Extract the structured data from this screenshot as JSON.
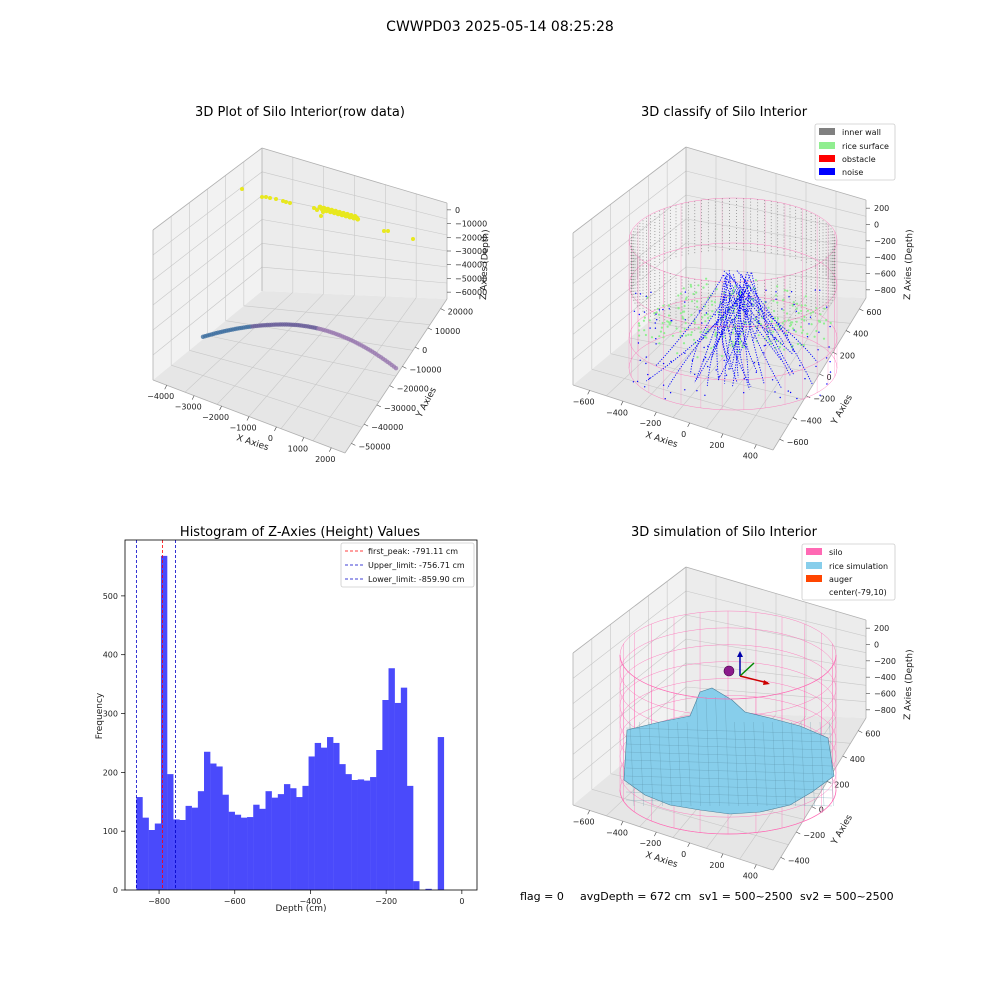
{
  "suptitle": "CWWPD03 2025-05-14 08:25:28",
  "footer": {
    "flag": "flag = 0",
    "avg": "avgDepth = 672 cm",
    "sv1": "sv1 = 500~2500",
    "sv2": "sv2 = 500~2500"
  },
  "colors": {
    "hist_bar": "#4a4afb",
    "peak_line": "#ff0000",
    "limit_line": "#0000c8",
    "inner_wall": "#808080",
    "rice_surface": "#90ee90",
    "obstacle": "#ff0000",
    "noise": "#0000ff",
    "silo": "#ff69b4",
    "rice_sim": "#87ceeb",
    "auger": "#ff4500",
    "raw_points": "#e8e81e"
  },
  "chart_data": [
    {
      "type": "scatter3d",
      "title": "3D Plot of Silo Interior(row data)",
      "xlabel": "X Axies",
      "ylabel": "Y Axies",
      "zlabel": "Z Axies (Depth)",
      "xticks": [
        "−4000",
        "−3000",
        "−2000",
        "−1000",
        "0",
        "1000",
        "2000"
      ],
      "yticks": [
        "−50000",
        "−40000",
        "−30000",
        "−20000",
        "−10000",
        "0",
        "10000",
        "20000"
      ],
      "zticks": [
        "0",
        "−10000",
        "−20000",
        "−30000",
        "−40000",
        "−50000",
        "−60000"
      ]
    },
    {
      "type": "scatter3d",
      "title": "3D classify of Silo Interior",
      "xlabel": "X Axies",
      "ylabel": "Y Axies",
      "zlabel": "Z Axies (Depth)",
      "xticks": [
        "−600",
        "−400",
        "−200",
        "0",
        "200",
        "400"
      ],
      "yticks": [
        "−600",
        "−400",
        "−200",
        "0",
        "200",
        "400",
        "600"
      ],
      "zticks": [
        "200",
        "0",
        "−200",
        "−400",
        "−600",
        "−800"
      ],
      "legend": [
        "inner wall",
        "rice surface",
        "obstacle",
        "noise"
      ],
      "legend_loc": "upper right"
    },
    {
      "type": "bar",
      "title": "Histogram of Z-Axies (Height) Values",
      "xlabel": "Depth (cm)",
      "ylabel": "Frequency",
      "xlim": [
        -890,
        40
      ],
      "ylim": [
        0,
        595
      ],
      "xticks": [
        -800,
        -600,
        -400,
        -200,
        0
      ],
      "xtick_labels": [
        "−800",
        "−600",
        "−400",
        "−200",
        "0"
      ],
      "yticks": [
        0,
        100,
        200,
        300,
        400,
        500
      ],
      "bin_start": -860,
      "bin_width": 16.25,
      "values": [
        158,
        123,
        102,
        113,
        568,
        197,
        120,
        119,
        143,
        140,
        168,
        235,
        215,
        210,
        162,
        133,
        128,
        123,
        124,
        145,
        138,
        168,
        157,
        163,
        180,
        173,
        158,
        177,
        227,
        250,
        242,
        260,
        250,
        214,
        197,
        187,
        188,
        186,
        192,
        238,
        323,
        377,
        318,
        344,
        177,
        15,
        0,
        2,
        0,
        260
      ],
      "lines": [
        {
          "label": "first_peak: -791.11 cm",
          "x": -791.11,
          "color": "#ff0000"
        },
        {
          "label": "Upper_limit: -756.71 cm",
          "x": -756.71,
          "color": "#0000c8"
        },
        {
          "label": "Lower_limit: -859.90 cm",
          "x": -859.9,
          "color": "#0000c8"
        }
      ],
      "legend_loc": "upper right",
      "grid": false
    },
    {
      "type": "surface3d",
      "title": "3D simulation of Silo Interior",
      "xlabel": "X Axies",
      "ylabel": "Y Axies",
      "zlabel": "Z Axies (Depth)",
      "xticks": [
        "−600",
        "−400",
        "−200",
        "0",
        "200",
        "400"
      ],
      "yticks": [
        "−400",
        "−200",
        "0",
        "200",
        "400",
        "600"
      ],
      "zticks": [
        "200",
        "0",
        "−200",
        "−400",
        "−600",
        "−800"
      ],
      "legend": [
        "silo",
        "rice simulation",
        "auger",
        "center(-79,10)"
      ],
      "legend_loc": "upper right"
    }
  ]
}
